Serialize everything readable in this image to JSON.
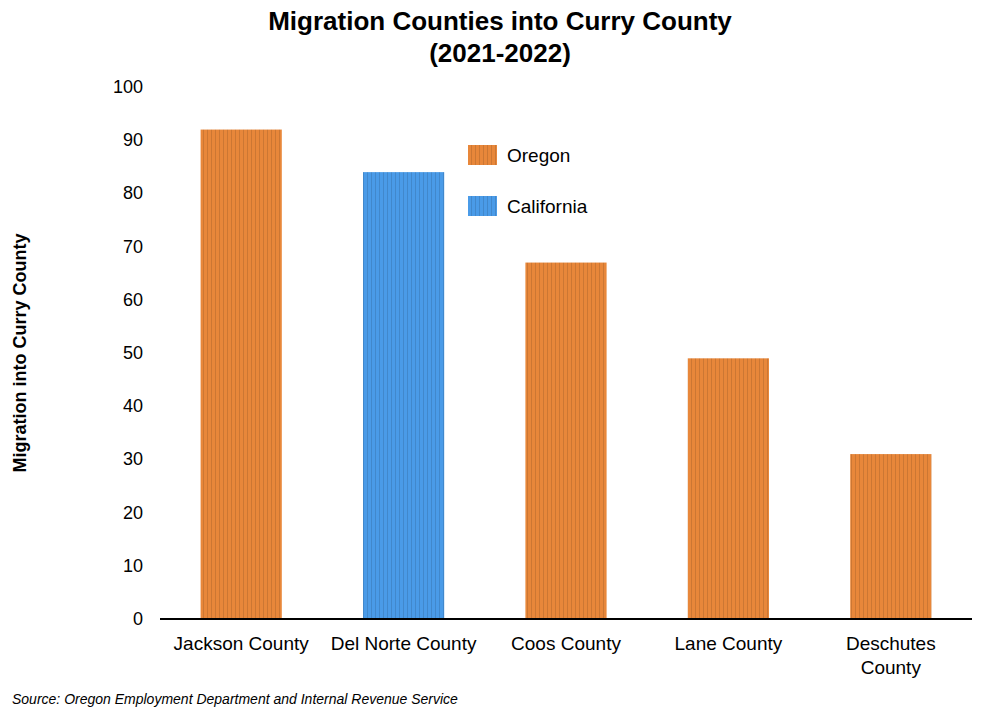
{
  "chart_data": {
    "type": "bar",
    "title": [
      "Migration Counties into Curry County",
      "(2021-2022)"
    ],
    "y_label": "Migration into Curry County",
    "source": "Source: Oregon Employment Department and Internal Revenue Service",
    "categories": [
      "Jackson County",
      "Del Norte County",
      "Coos County",
      "Lane County",
      "Deschutes\nCounty"
    ],
    "series": [
      {
        "name": "Oregon",
        "color": "#e8873a",
        "values": [
          92,
          null,
          67,
          49,
          31
        ]
      },
      {
        "name": "California",
        "color": "#4a9be8",
        "values": [
          null,
          84,
          null,
          null,
          null
        ]
      }
    ],
    "stacked": true,
    "grid": false,
    "legend": "top",
    "ylim": [
      0,
      100
    ],
    "yticks": [
      0,
      10,
      20,
      30,
      40,
      50,
      60,
      70,
      80,
      90,
      100
    ]
  }
}
